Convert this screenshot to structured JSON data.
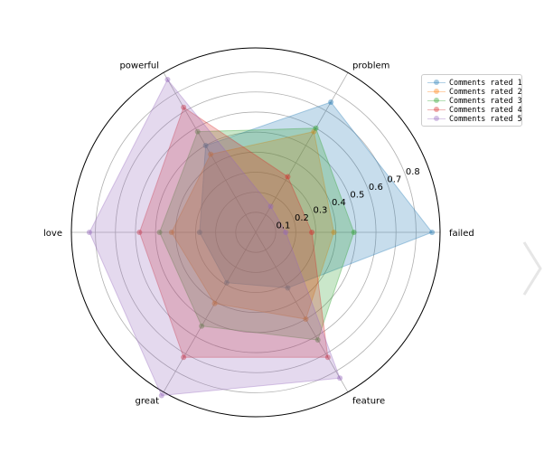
{
  "chart_data": {
    "type": "radar",
    "categories": [
      "failed",
      "problem",
      "powerful",
      "love",
      "great",
      "feature"
    ],
    "series": [
      {
        "name": "Comments rated 1",
        "color": "#1f77b4",
        "values": [
          0.88,
          0.75,
          0.5,
          0.28,
          0.29,
          0.32
        ]
      },
      {
        "name": "Comments rated 2",
        "color": "#ff7f0e",
        "values": [
          0.39,
          0.58,
          0.45,
          0.42,
          0.41,
          0.5
        ]
      },
      {
        "name": "Comments rated 3",
        "color": "#2ca02c",
        "values": [
          0.49,
          0.6,
          0.58,
          0.48,
          0.54,
          0.62
        ]
      },
      {
        "name": "Comments rated 4",
        "color": "#d62728",
        "values": [
          0.28,
          0.32,
          0.72,
          0.58,
          0.72,
          0.72
        ]
      },
      {
        "name": "Comments rated 5",
        "color": "#9467bd",
        "values": [
          0.15,
          0.15,
          0.88,
          0.83,
          0.94,
          0.84
        ]
      }
    ],
    "radial_ticks": [
      "0.1",
      "0.2",
      "0.3",
      "0.4",
      "0.5",
      "0.6",
      "0.7",
      "0.8"
    ],
    "rmax": 0.92,
    "grid": true,
    "legend_placement": "top-right"
  }
}
